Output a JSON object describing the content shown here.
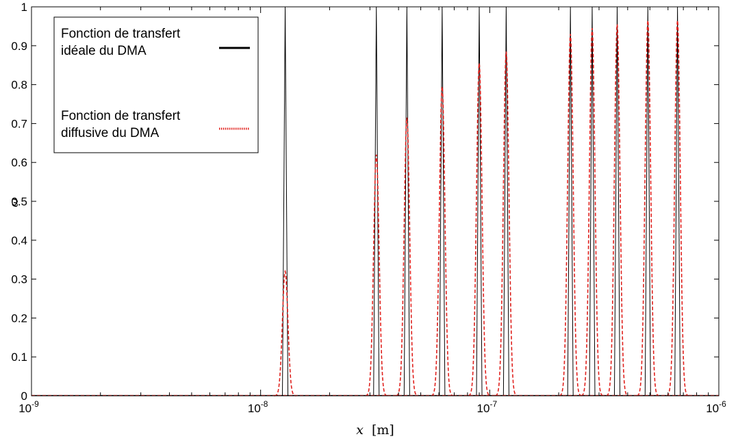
{
  "chart_data": {
    "type": "line",
    "title": "",
    "xlabel": "x [m]",
    "xlabel_var": "x",
    "xlabel_unit": "[m]",
    "ylabel": "ω",
    "xscale": "log",
    "xlim": [
      1e-09,
      1e-06
    ],
    "ylim": [
      0,
      1
    ],
    "grid": false,
    "legend_position": "top-left",
    "xticks": [
      {
        "value": 1e-09,
        "base": "10",
        "exp": "-9"
      },
      {
        "value": 1e-08,
        "base": "10",
        "exp": "-8"
      },
      {
        "value": 1e-07,
        "base": "10",
        "exp": "-7"
      },
      {
        "value": 1e-06,
        "base": "10",
        "exp": "-6"
      }
    ],
    "yticks": [
      "0",
      "0.1",
      "0.2",
      "0.3",
      "0.4",
      "0.5",
      "0.6",
      "0.7",
      "0.8",
      "0.9",
      "1"
    ],
    "series": [
      {
        "name_lines": [
          "Fonction de transfert",
          "idéale du DMA"
        ],
        "style": "solid",
        "color": "#000000",
        "peaks": [
          {
            "center": 1.28e-08,
            "height": 1.0
          },
          {
            "center": 3.2e-08,
            "height": 1.0
          },
          {
            "center": 4.35e-08,
            "height": 1.0
          },
          {
            "center": 6.2e-08,
            "height": 1.0
          },
          {
            "center": 9e-08,
            "height": 1.0
          },
          {
            "center": 1.18e-07,
            "height": 1.0
          },
          {
            "center": 2.25e-07,
            "height": 1.0
          },
          {
            "center": 2.8e-07,
            "height": 1.0
          },
          {
            "center": 3.6e-07,
            "height": 1.0
          },
          {
            "center": 4.9e-07,
            "height": 1.0
          },
          {
            "center": 6.6e-07,
            "height": 1.0
          }
        ]
      },
      {
        "name_lines": [
          "Fonction de transfert",
          "diffusive du DMA"
        ],
        "style": "dashed",
        "color": "#e0201c",
        "peaks": [
          {
            "center": 1.28e-08,
            "height": 0.32
          },
          {
            "center": 3.2e-08,
            "height": 0.62
          },
          {
            "center": 4.35e-08,
            "height": 0.715
          },
          {
            "center": 6.2e-08,
            "height": 0.795
          },
          {
            "center": 9e-08,
            "height": 0.855
          },
          {
            "center": 1.18e-07,
            "height": 0.885
          },
          {
            "center": 2.25e-07,
            "height": 0.93
          },
          {
            "center": 2.8e-07,
            "height": 0.945
          },
          {
            "center": 3.6e-07,
            "height": 0.955
          },
          {
            "center": 4.9e-07,
            "height": 0.965
          },
          {
            "center": 6.6e-07,
            "height": 0.965
          }
        ]
      }
    ]
  }
}
